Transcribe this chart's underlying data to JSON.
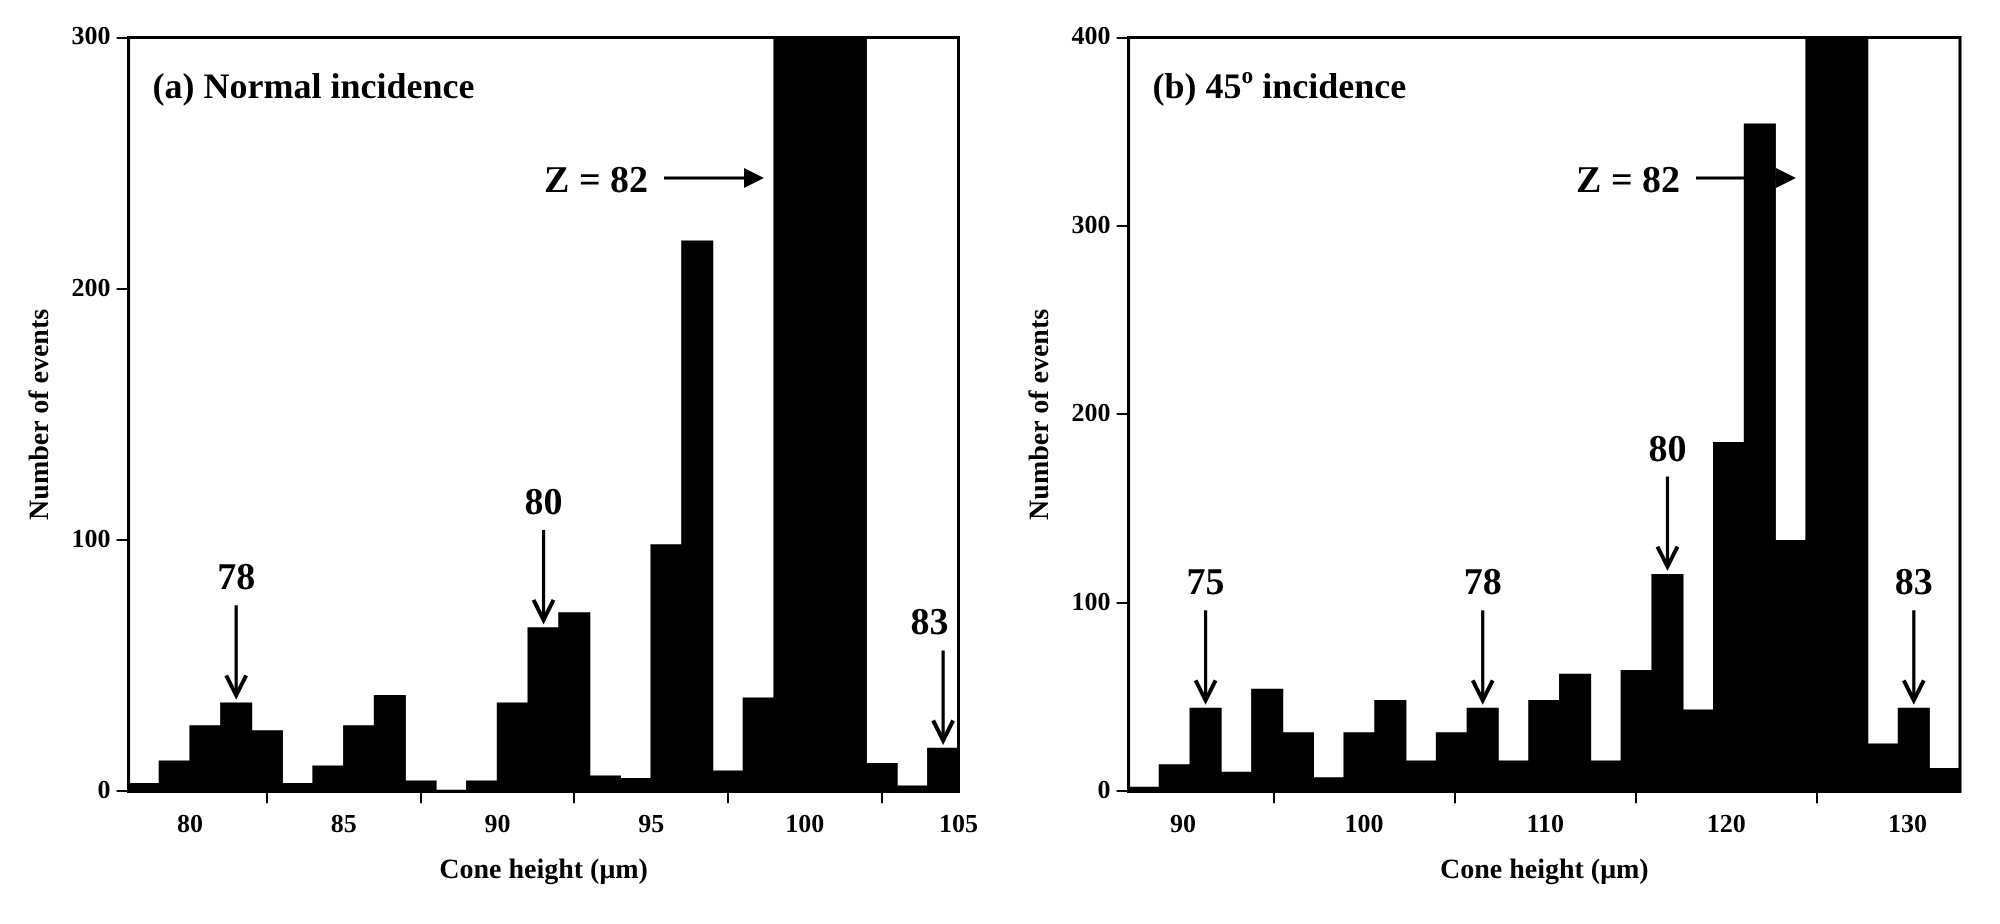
{
  "chart_data": [
    {
      "type": "histogram",
      "xlabel": "Cone height (μm)",
      "ylabel": "Number of events",
      "color": "#000000",
      "bins": [
        78,
        79,
        80,
        81,
        82,
        83,
        84,
        85,
        86,
        87,
        88,
        89,
        90,
        91,
        92,
        93,
        94,
        95,
        96,
        97,
        98,
        99,
        100,
        101,
        102,
        103,
        104,
        105
      ],
      "values": [
        3,
        12,
        26,
        35,
        24,
        3,
        10,
        26,
        38,
        4,
        0,
        4,
        35,
        65,
        71,
        6,
        5,
        98,
        219,
        8,
        37,
        300,
        300,
        300,
        11,
        2,
        17
      ],
      "xlim": [
        78,
        105
      ],
      "ylim": [
        0,
        300
      ],
      "xticks": [
        80,
        85,
        90,
        95,
        100,
        105
      ],
      "yticks": [
        0,
        100,
        200,
        300
      ],
      "grid": false,
      "annotations": [
        "(a) Normal incidence",
        "Z = 82",
        {
          "text": "78",
          "x": 81.5,
          "y": 35
        },
        {
          "text": "80",
          "x": 91.5,
          "y": 65
        },
        {
          "text": "83",
          "x": 104.5,
          "y": 17
        }
      ]
    },
    {
      "type": "histogram",
      "xlabel": "Cone height (μm)",
      "ylabel": "Number of events",
      "color": "#000000",
      "bins": [
        87.0,
        88.7,
        90.4,
        92.1,
        93.8,
        95.5,
        97.2,
        98.9,
        100.6,
        102.3,
        104.0,
        105.7,
        107.4,
        109.1,
        110.8,
        112.5,
        114.2,
        115.9,
        117.6,
        119.3,
        121.0,
        122.7,
        124.4,
        126.1,
        127.8,
        129.5,
        131.2,
        132.9
      ],
      "values": [
        2,
        14,
        44,
        10,
        54,
        31,
        7,
        31,
        48,
        16,
        31,
        44,
        16,
        48,
        62,
        16,
        64,
        115,
        43,
        185,
        354,
        133,
        400,
        400,
        25,
        44,
        12
      ],
      "xlim": [
        87,
        132.9
      ],
      "ylim": [
        0,
        400
      ],
      "xticks": [
        90,
        100,
        110,
        120,
        130
      ],
      "yticks": [
        0,
        100,
        200,
        300,
        400
      ],
      "grid": false,
      "annotations": [
        "(b) 45$^{o}$ incidence",
        "Z = 82",
        {
          "text": "75",
          "x": 91.25,
          "y": 44
        },
        {
          "text": "78",
          "x": 106.55,
          "y": 44
        },
        {
          "text": "80",
          "x": 116.75,
          "y": 115
        },
        {
          "text": "83",
          "x": 130.35,
          "y": 44
        }
      ]
    }
  ]
}
